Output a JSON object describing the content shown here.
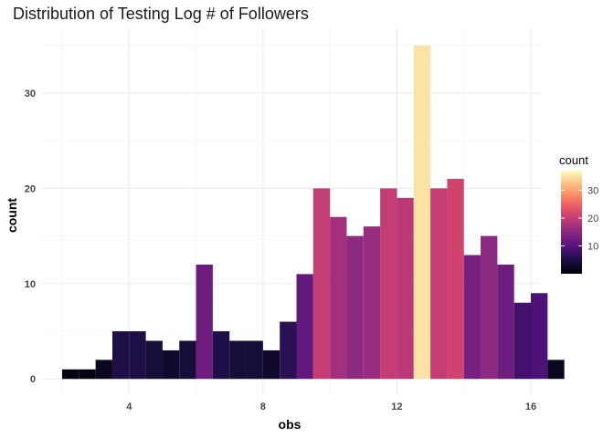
{
  "chart_data": {
    "type": "bar",
    "title": "Distribution of Testing Log # of Followers",
    "xlabel": "obs",
    "ylabel": "count",
    "xlim": [
      1.4,
      16.3
    ],
    "ylim": [
      -1.7,
      36.8
    ],
    "x_ticks": [
      4,
      8,
      12,
      16
    ],
    "y_ticks": [
      0,
      10,
      20,
      30
    ],
    "bin_width": 0.5,
    "bins": [
      {
        "x": 2.25,
        "count": 1
      },
      {
        "x": 2.75,
        "count": 1
      },
      {
        "x": 3.25,
        "count": 2
      },
      {
        "x": 3.75,
        "count": 5
      },
      {
        "x": 4.25,
        "count": 5
      },
      {
        "x": 4.75,
        "count": 4
      },
      {
        "x": 5.25,
        "count": 3
      },
      {
        "x": 5.75,
        "count": 4
      },
      {
        "x": 6.25,
        "count": 12
      },
      {
        "x": 6.75,
        "count": 5
      },
      {
        "x": 7.25,
        "count": 4
      },
      {
        "x": 7.75,
        "count": 4
      },
      {
        "x": 8.25,
        "count": 3
      },
      {
        "x": 8.75,
        "count": 6
      },
      {
        "x": 9.25,
        "count": 11
      },
      {
        "x": 9.75,
        "count": 20
      },
      {
        "x": 10.25,
        "count": 17
      },
      {
        "x": 10.75,
        "count": 15
      },
      {
        "x": 11.25,
        "count": 16
      },
      {
        "x": 11.75,
        "count": 20
      },
      {
        "x": 12.25,
        "count": 19
      },
      {
        "x": 12.75,
        "count": 35
      },
      {
        "x": 13.25,
        "count": 20
      },
      {
        "x": 13.75,
        "count": 21
      },
      {
        "x": 14.25,
        "count": 13
      },
      {
        "x": 14.75,
        "count": 15
      },
      {
        "x": 15.25,
        "count": 12
      },
      {
        "x": 15.75,
        "count": 8
      },
      {
        "x": 16.25,
        "count": 9
      },
      {
        "x": 16.75,
        "count": 2
      }
    ],
    "legend": {
      "title": "count",
      "placement": "right",
      "range": [
        0,
        37
      ],
      "ticks": [
        10,
        20,
        30
      ],
      "colormap": "magma"
    },
    "grid": true
  }
}
